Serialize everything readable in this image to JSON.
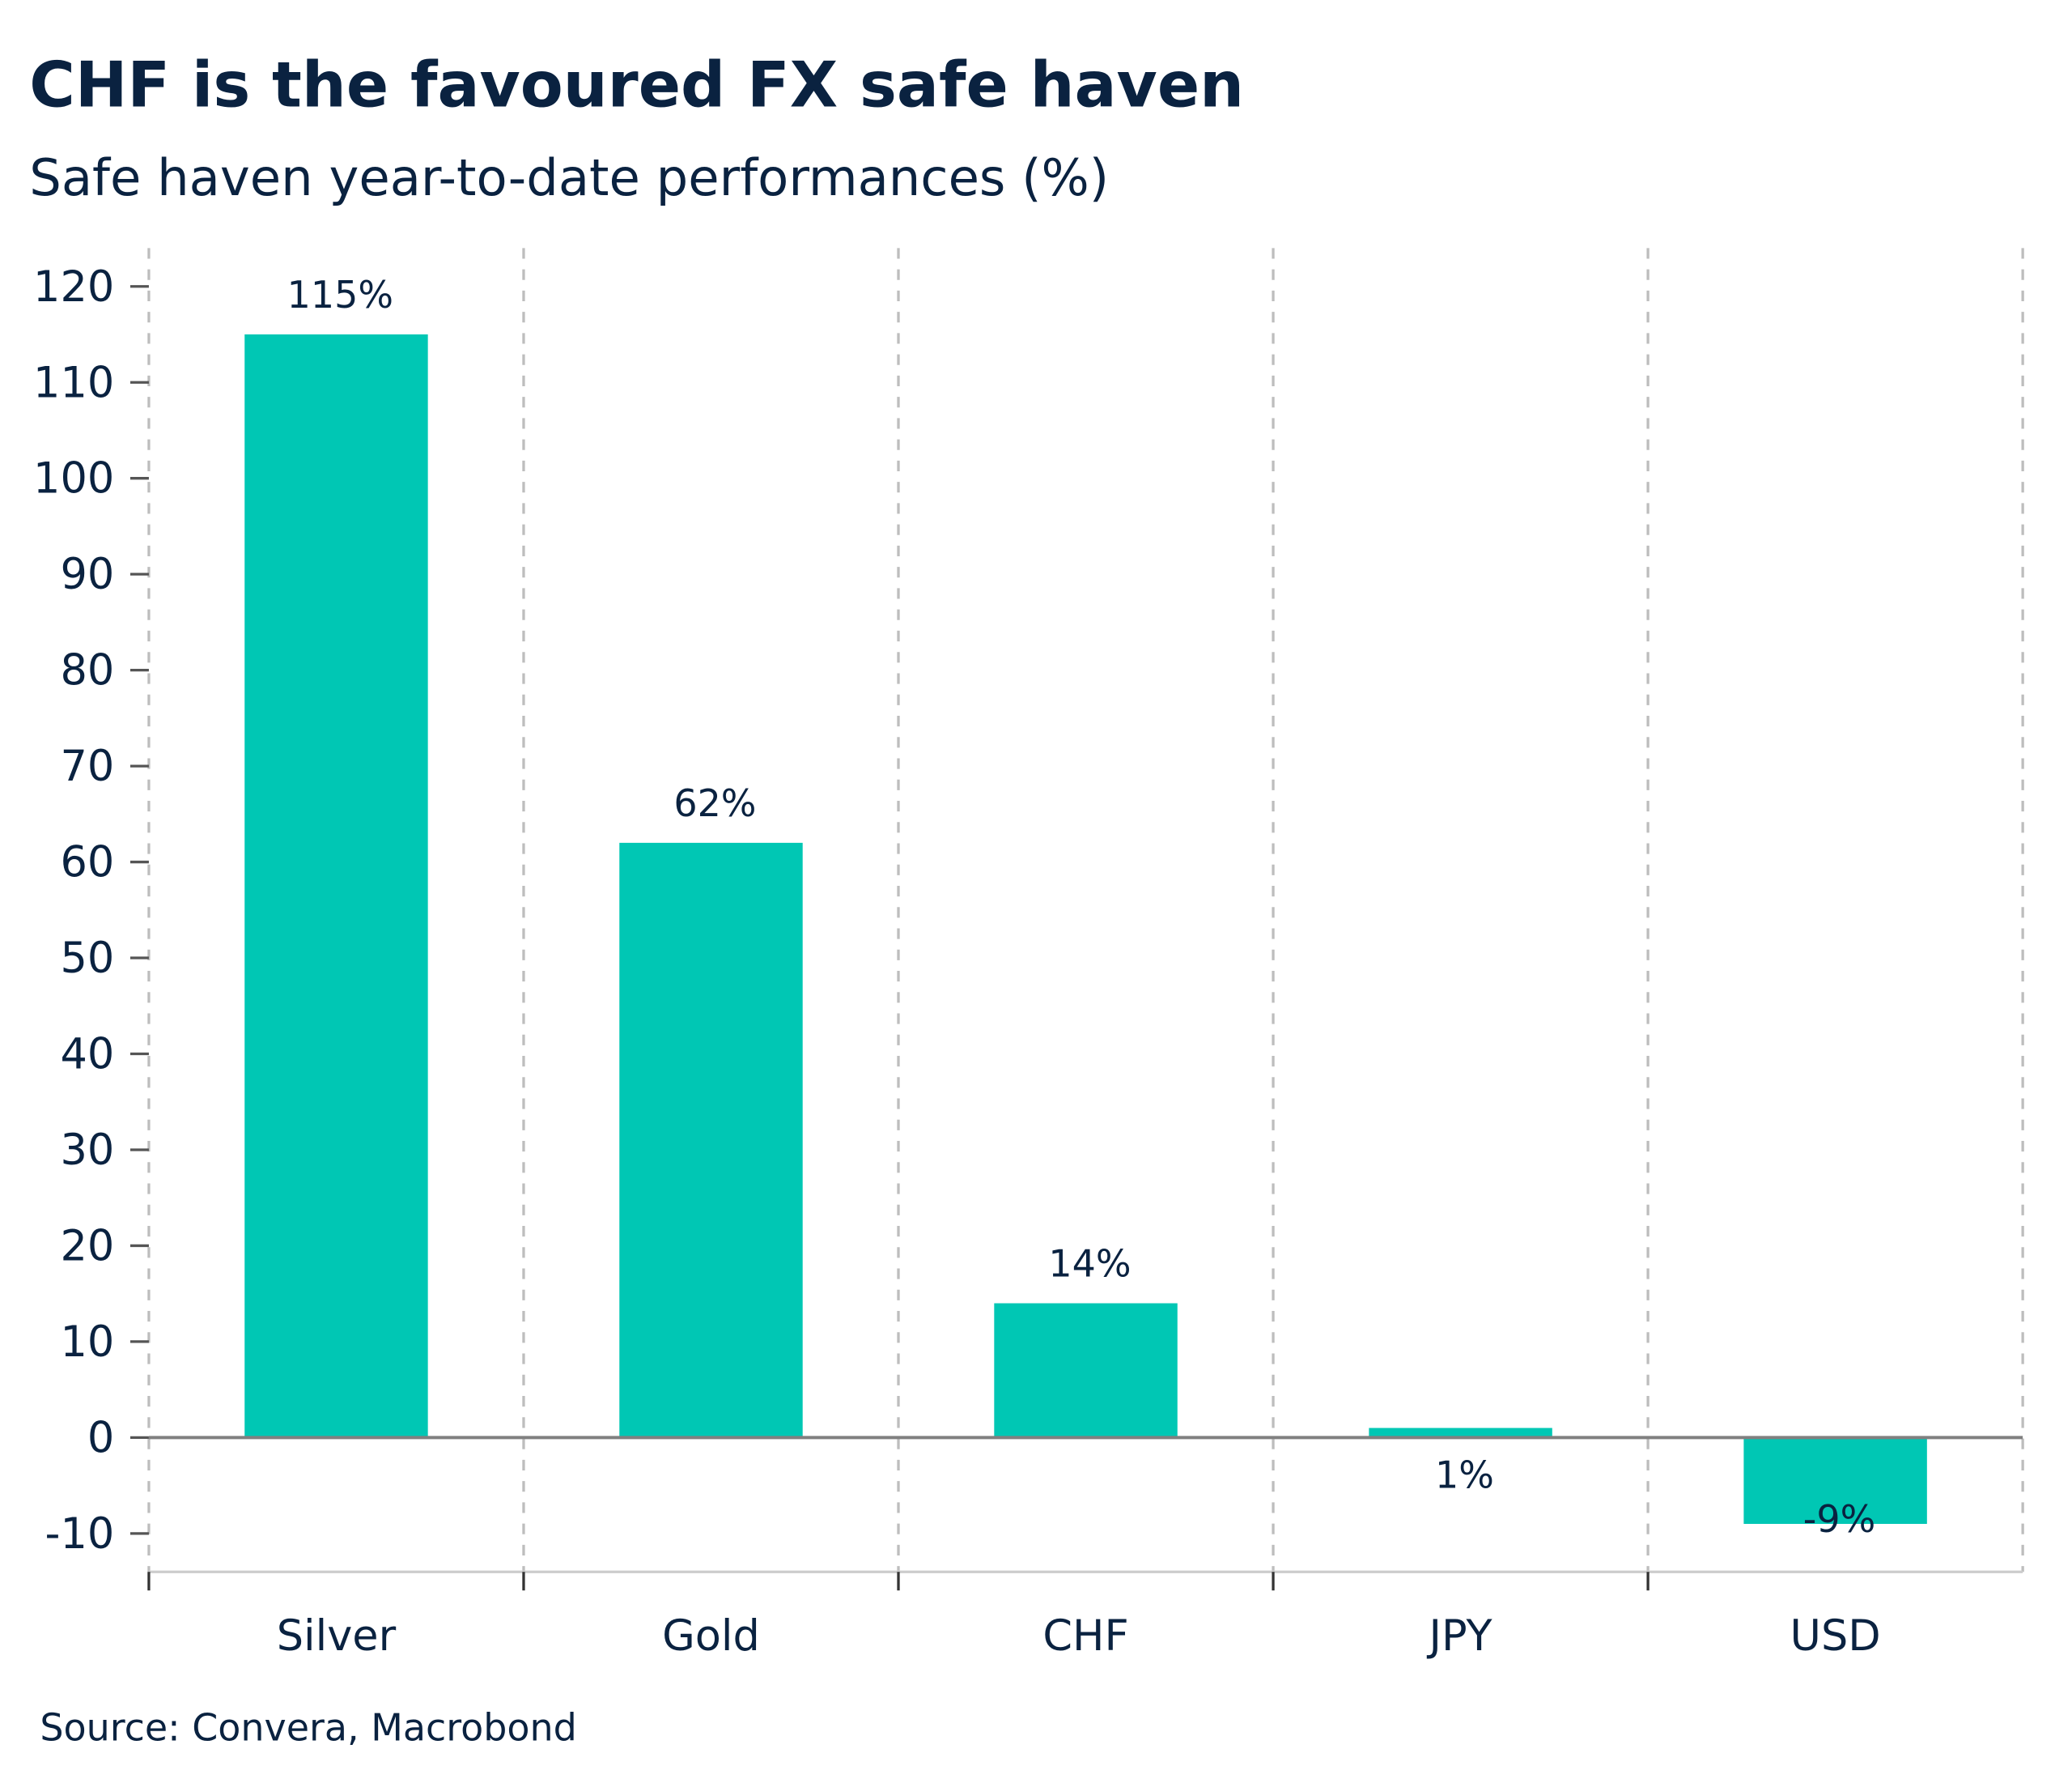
{
  "chart_data": {
    "type": "bar",
    "title": "CHF is the favoured FX safe haven",
    "subtitle": "Safe haven year-to-date performances (%)",
    "categories": [
      "Silver",
      "Gold",
      "CHF",
      "JPY",
      "USD"
    ],
    "values": [
      115,
      62,
      14,
      1,
      -9
    ],
    "data_labels": [
      "115%",
      "62%",
      "14%",
      "1%",
      "-9%"
    ],
    "xlabel": "",
    "ylabel": "",
    "ylim": [
      -14,
      124
    ],
    "yticks": [
      -10,
      0,
      10,
      20,
      30,
      40,
      50,
      60,
      70,
      80,
      90,
      100,
      110,
      120
    ],
    "grid": "vertical dashed between categories",
    "legend": "none",
    "source": "Source: Convera, Macrobond",
    "colors": {
      "bar": "#00c7b4",
      "text": "#0a2240",
      "grid": "#bdbdbd",
      "zero_line": "#808080"
    }
  }
}
